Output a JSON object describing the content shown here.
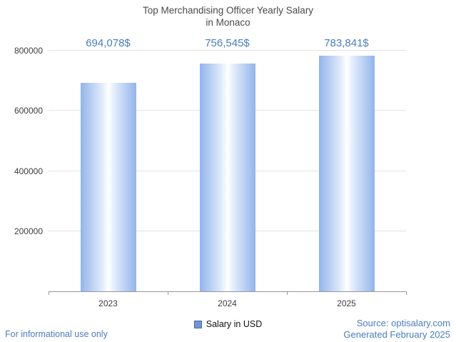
{
  "chart_data": {
    "type": "bar",
    "title": "Top Merchandising Officer Yearly Salary in Monaco",
    "title_line1": "Top Merchandising Officer Yearly Salary",
    "title_line2": "in Monaco",
    "categories": [
      "2023",
      "2024",
      "2025"
    ],
    "values": [
      694078,
      756545,
      783841
    ],
    "value_labels": [
      "694,078$",
      "756,545$",
      "783,841$"
    ],
    "series": [
      {
        "name": "Salary in USD",
        "values": [
          694078,
          756545,
          783841
        ]
      }
    ],
    "xlabel": "",
    "ylabel": "",
    "ylim": [
      0,
      800000
    ],
    "yticks": [
      200000,
      400000,
      600000,
      800000
    ],
    "grid": true,
    "legend_position": "bottom"
  },
  "legend": {
    "label": "Salary in USD"
  },
  "footer": {
    "disclaimer": "For informational use only",
    "source": "Source: optisalary.com",
    "generated": "Generated February 2025"
  },
  "colors": {
    "accent": "#4a7dc0",
    "title": "#4a4a4a",
    "text": "#3d3d3d",
    "axis": "#979797",
    "grid": "#e3e3e3",
    "bar_edge": "#93b4ea",
    "bar_center": "#ffffff",
    "legend_swatch": "#7196d6",
    "legend_swatch_border": "#49689c"
  }
}
